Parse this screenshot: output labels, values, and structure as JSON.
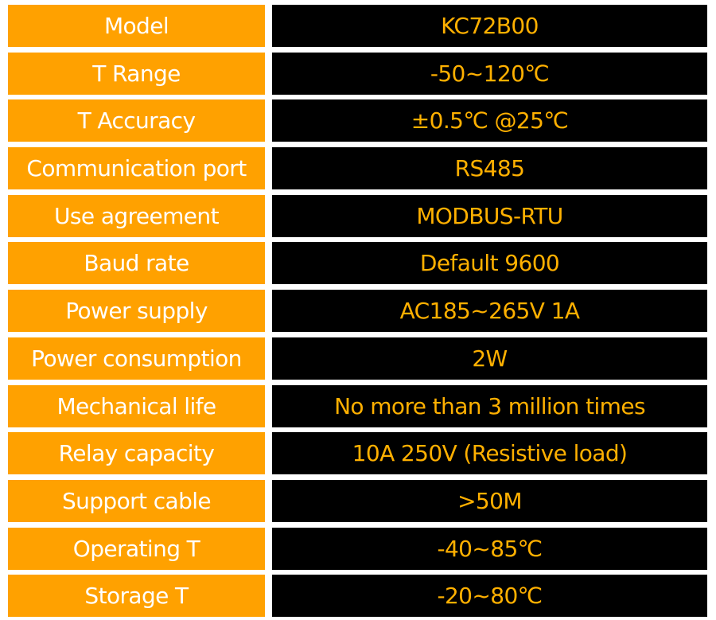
{
  "colors": {
    "label_background": "#ffa100",
    "label_text": "#ffffff",
    "value_background": "#000000",
    "value_text": "#ffb000"
  },
  "specs": [
    {
      "label": "Model",
      "value": "KC72B00"
    },
    {
      "label": "T Range",
      "value": "-50~120℃"
    },
    {
      "label": "T Accuracy",
      "value": "±0.5℃ @25℃"
    },
    {
      "label": "Communication port",
      "value": "RS485"
    },
    {
      "label": "Use agreement",
      "value": "MODBUS-RTU"
    },
    {
      "label": "Baud rate",
      "value": "Default 9600"
    },
    {
      "label": "Power supply",
      "value": "AC185~265V 1A"
    },
    {
      "label": "Power consumption",
      "value": "2W"
    },
    {
      "label": "Mechanical life",
      "value": "No more than 3 million times"
    },
    {
      "label": "Relay capacity",
      "value": "10A 250V (Resistive load)"
    },
    {
      "label": "Support cable",
      "value": ">50M"
    },
    {
      "label": "Operating T",
      "value": "-40~85℃"
    },
    {
      "label": "Storage T",
      "value": "-20~80℃"
    }
  ]
}
